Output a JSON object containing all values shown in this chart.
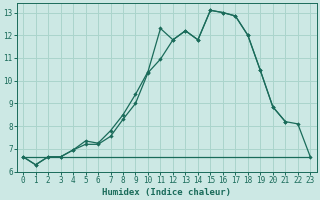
{
  "xlabel": "Humidex (Indice chaleur)",
  "bg_color": "#cce8e4",
  "grid_color": "#aad4cc",
  "line_color": "#1a6b5a",
  "xlim": [
    -0.5,
    23.5
  ],
  "ylim": [
    6.0,
    13.4
  ],
  "xticks": [
    0,
    1,
    2,
    3,
    4,
    5,
    6,
    7,
    8,
    9,
    10,
    11,
    12,
    13,
    14,
    15,
    16,
    17,
    18,
    19,
    20,
    21,
    22,
    23
  ],
  "yticks": [
    6,
    7,
    8,
    9,
    10,
    11,
    12,
    13
  ],
  "line1_x": [
    0,
    1,
    2,
    3,
    4,
    5,
    6,
    7,
    8,
    9,
    10,
    11,
    12,
    13,
    14,
    15,
    16,
    17,
    18,
    19,
    20,
    21
  ],
  "line1_y": [
    6.65,
    6.3,
    6.65,
    6.65,
    6.95,
    7.35,
    7.25,
    7.8,
    8.5,
    9.4,
    10.4,
    12.3,
    11.8,
    12.2,
    11.8,
    13.1,
    13.0,
    12.85,
    12.0,
    10.45,
    8.85,
    8.2
  ],
  "line2_x": [
    0,
    1,
    2,
    3,
    4,
    5,
    6,
    7,
    8,
    9,
    10,
    11,
    12,
    13,
    14,
    15,
    16,
    17,
    18,
    19,
    20,
    21,
    22,
    23
  ],
  "line2_y": [
    6.65,
    6.3,
    6.65,
    6.65,
    6.95,
    7.2,
    7.2,
    7.55,
    8.3,
    9.0,
    10.35,
    10.95,
    11.8,
    12.2,
    11.8,
    13.1,
    13.0,
    12.85,
    12.0,
    10.45,
    8.85,
    8.2,
    8.1,
    6.65
  ],
  "line3_x": [
    0,
    3,
    22,
    23
  ],
  "line3_y": [
    6.65,
    6.65,
    6.65,
    6.65
  ]
}
